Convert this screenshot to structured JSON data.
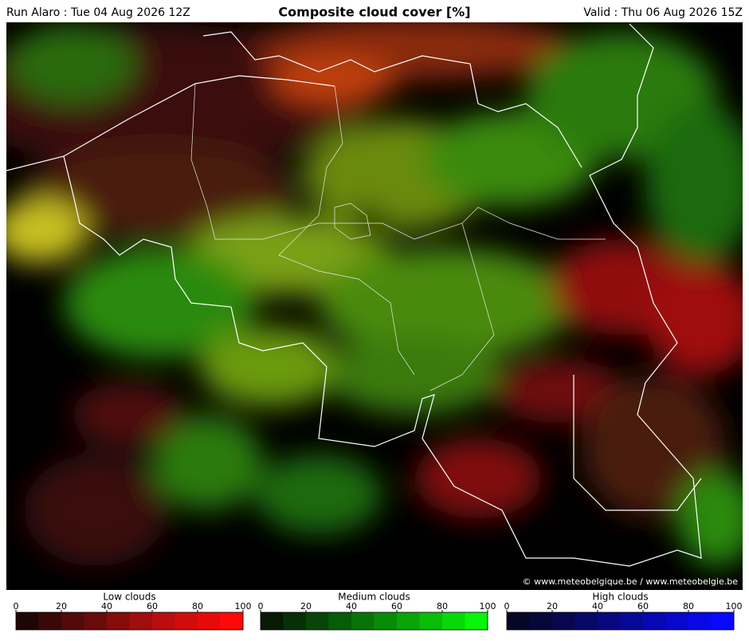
{
  "header": {
    "run": "Run Alaro : Tue 04 Aug 2026 12Z",
    "title": "Composite cloud cover [%]",
    "valid": "Valid : Thu 06 Aug 2026 15Z"
  },
  "map": {
    "credit": "© www.meteobelgique.be / www.meteobelgie.be"
  },
  "legends": [
    {
      "title": "Low clouds",
      "ticks": [
        0,
        20,
        40,
        60,
        80,
        100
      ],
      "colors": [
        "#1e0606",
        "#3a0808",
        "#520a0a",
        "#6a0b0b",
        "#860c0c",
        "#a00d0d",
        "#ba0d0d",
        "#d20c0c",
        "#e80a0a",
        "#ff0808"
      ]
    },
    {
      "title": "Medium clouds",
      "ticks": [
        0,
        20,
        40,
        60,
        80,
        100
      ],
      "colors": [
        "#061a06",
        "#073007",
        "#074607",
        "#075c07",
        "#087408",
        "#088c08",
        "#08a408",
        "#08bc08",
        "#08d808",
        "#08f408"
      ]
    },
    {
      "title": "High clouds",
      "ticks": [
        0,
        20,
        40,
        60,
        80,
        100
      ],
      "colors": [
        "#060626",
        "#07073a",
        "#07074e",
        "#080866",
        "#08087e",
        "#080898",
        "#0808b2",
        "#0808cc",
        "#0808e6",
        "#0808ff"
      ]
    }
  ]
}
